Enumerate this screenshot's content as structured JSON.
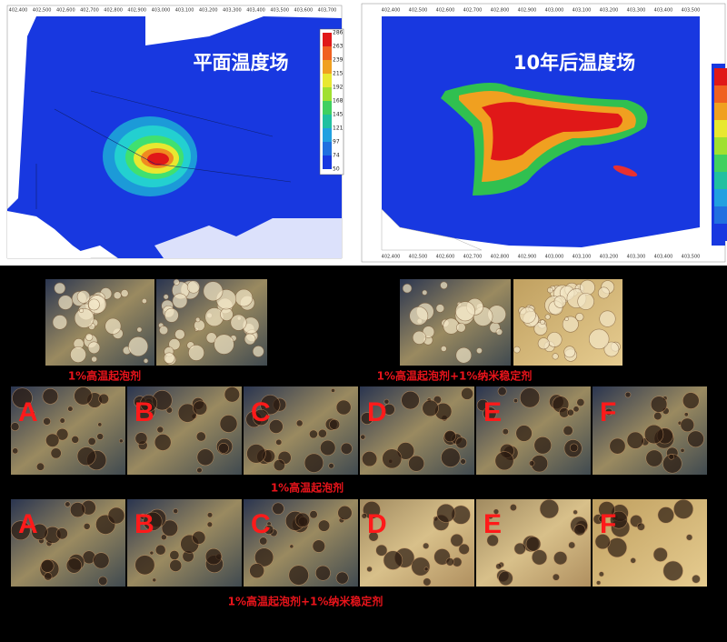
{
  "maps": [
    {
      "title": "平面温度场",
      "colorbar_ticks": [
        286,
        263,
        239,
        215,
        192,
        168,
        145,
        121,
        97,
        74,
        50
      ],
      "top_axis": [
        "402,400",
        "402,500",
        "402,600",
        "402,700",
        "402,800",
        "402,900",
        "403,000",
        "403,100",
        "403,200",
        "403,300",
        "403,400",
        "403,500",
        "403,600",
        "403,700"
      ]
    },
    {
      "title": "10年后温度场",
      "top_axis": [
        "402,400",
        "402,500",
        "402,600",
        "402,700",
        "402,800",
        "402,900",
        "403,000",
        "403,100",
        "403,200",
        "403,300",
        "403,400",
        "403,500"
      ],
      "bottom_axis": [
        "402,400",
        "402,500",
        "402,600",
        "402,700",
        "402,800",
        "402,900",
        "403,000",
        "403,100",
        "403,200",
        "403,300",
        "403,400",
        "403,500"
      ]
    }
  ],
  "micrographs": {
    "left_label": "1%高温起泡剂",
    "right_label": "1%高温起泡剂+1%纳米稳定剂",
    "row1_caption": "1%高温起泡剂",
    "row2_caption": "1%高温起泡剂+1%纳米稳定剂",
    "row1_letters": [
      "A",
      "B",
      "C",
      "D",
      "E",
      "F"
    ],
    "row2_letters": [
      "A",
      "B",
      "C",
      "D",
      "E",
      "F"
    ]
  }
}
